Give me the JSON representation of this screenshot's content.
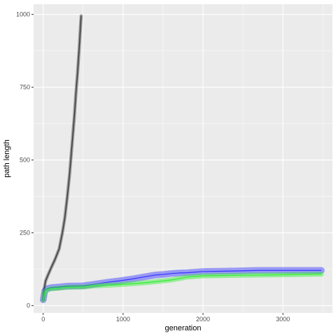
{
  "chart_data": {
    "type": "line",
    "title": "",
    "xlabel": "generation",
    "ylabel": "path length",
    "xlim": [
      -120,
      3620
    ],
    "ylim": [
      -25,
      1035
    ],
    "x_ticks": [
      0,
      1000,
      2000,
      3000
    ],
    "x_tick_labels": [
      "0",
      "1000",
      "2000",
      "3000"
    ],
    "y_ticks": [
      0,
      250,
      500,
      750,
      1000
    ],
    "y_tick_labels": [
      "0",
      "250",
      "500",
      "750",
      "1000"
    ],
    "grid": true,
    "legend": "none",
    "panel_background": "#ebebeb",
    "grid_color": "#ffffff",
    "series": [
      {
        "color": "#333333",
        "band": 6,
        "points": [
          [
            0,
            20
          ],
          [
            10,
            55
          ],
          [
            30,
            85
          ],
          [
            60,
            105
          ],
          [
            100,
            130
          ],
          [
            150,
            160
          ],
          [
            200,
            195
          ],
          [
            240,
            250
          ],
          [
            270,
            300
          ],
          [
            300,
            370
          ],
          [
            330,
            450
          ],
          [
            360,
            550
          ],
          [
            390,
            650
          ],
          [
            410,
            730
          ],
          [
            430,
            800
          ],
          [
            450,
            880
          ],
          [
            465,
            950
          ],
          [
            475,
            995
          ]
        ]
      },
      {
        "color": "#3333ff",
        "band": 18,
        "points": [
          [
            0,
            20
          ],
          [
            20,
            50
          ],
          [
            50,
            58
          ],
          [
            100,
            62
          ],
          [
            200,
            64
          ],
          [
            300,
            67
          ],
          [
            500,
            68
          ],
          [
            650,
            74
          ],
          [
            800,
            80
          ],
          [
            950,
            85
          ],
          [
            1100,
            91
          ],
          [
            1250,
            98
          ],
          [
            1400,
            105
          ],
          [
            1500,
            107
          ],
          [
            1600,
            110
          ],
          [
            1700,
            112
          ],
          [
            1800,
            113
          ],
          [
            1900,
            115
          ],
          [
            2000,
            117
          ],
          [
            2200,
            118
          ],
          [
            2400,
            119
          ],
          [
            2700,
            121
          ],
          [
            3000,
            121
          ],
          [
            3480,
            121
          ]
        ]
      },
      {
        "color": "#33ee33",
        "band": 12,
        "points": [
          [
            0,
            20
          ],
          [
            20,
            48
          ],
          [
            50,
            55
          ],
          [
            100,
            58
          ],
          [
            200,
            60
          ],
          [
            300,
            63
          ],
          [
            500,
            64
          ],
          [
            650,
            68
          ],
          [
            800,
            70
          ],
          [
            950,
            72
          ],
          [
            1100,
            75
          ],
          [
            1250,
            78
          ],
          [
            1400,
            82
          ],
          [
            1500,
            85
          ],
          [
            1600,
            88
          ],
          [
            1700,
            93
          ],
          [
            1800,
            98
          ],
          [
            1900,
            100
          ],
          [
            2000,
            102
          ],
          [
            2200,
            103
          ],
          [
            2400,
            104
          ],
          [
            2700,
            105
          ],
          [
            3000,
            106
          ],
          [
            3480,
            108
          ]
        ]
      }
    ]
  }
}
